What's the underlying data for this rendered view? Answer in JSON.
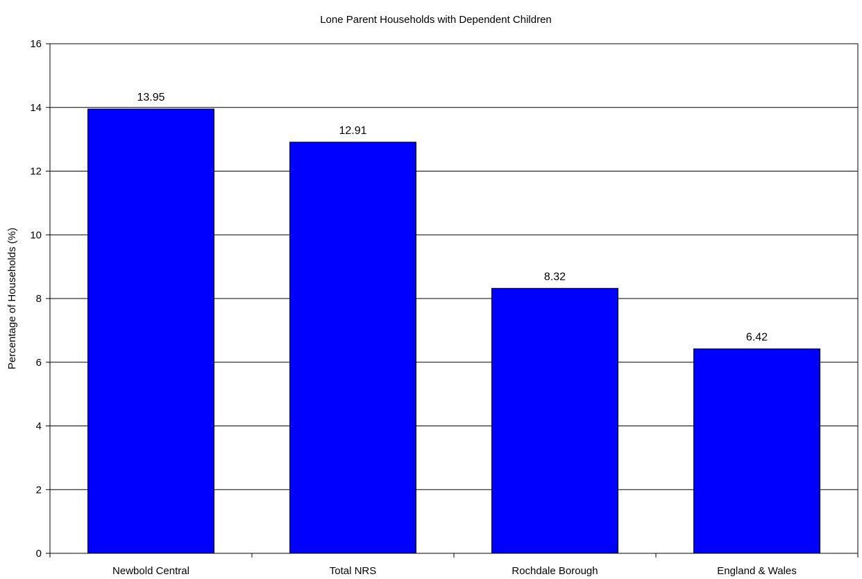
{
  "chart_data": {
    "type": "bar",
    "title": "Lone Parent Households with Dependent Children",
    "xlabel": "",
    "ylabel": "Percentage of Households (%)",
    "categories": [
      "Newbold Central",
      "Total NRS",
      "Rochdale Borough",
      "England & Wales"
    ],
    "values": [
      13.95,
      12.91,
      8.32,
      6.42
    ],
    "data_labels": [
      "13.95",
      "12.91",
      "8.32",
      "6.42"
    ],
    "ylim": [
      0,
      16
    ],
    "yticks": [
      0,
      2,
      4,
      6,
      8,
      10,
      12,
      14,
      16
    ],
    "ytick_labels": [
      "0",
      "2",
      "4",
      "6",
      "8",
      "10",
      "12",
      "14",
      "16"
    ],
    "grid": true,
    "legend": "none",
    "colors": {
      "bar_fill": "#0000FF",
      "bar_stroke": "#000000",
      "grid": "#000000",
      "axis": "#000000"
    }
  }
}
